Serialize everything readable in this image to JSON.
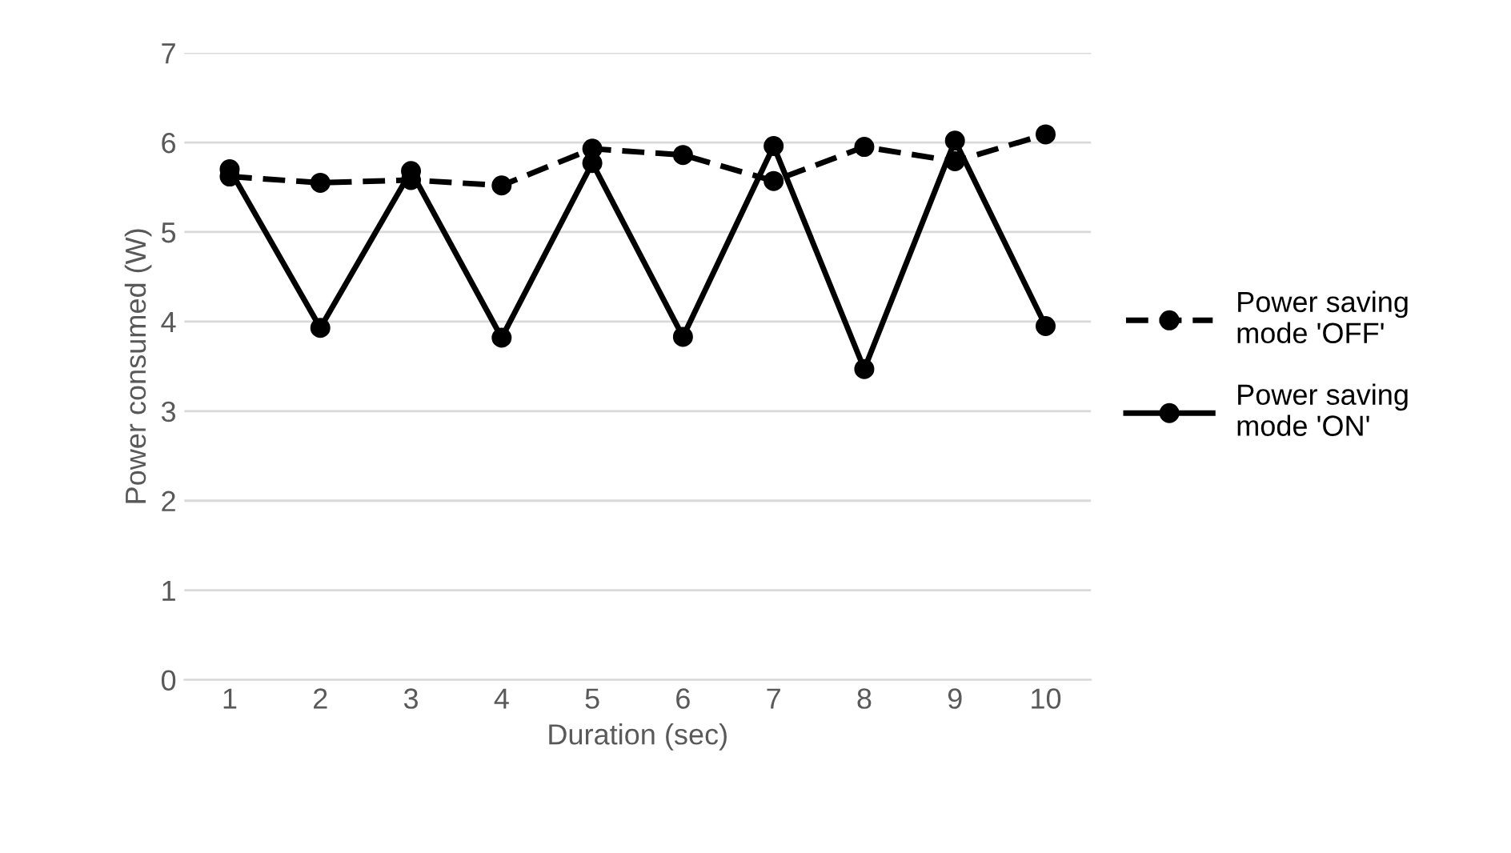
{
  "chart_data": {
    "type": "line",
    "xlabel": "Duration (sec)",
    "ylabel": "Power consumed (W)",
    "categories": [
      "1",
      "2",
      "3",
      "4",
      "5",
      "6",
      "7",
      "8",
      "9",
      "10"
    ],
    "series": [
      {
        "name": "Power saving\nmode 'OFF'",
        "color": "#000000",
        "line_style": "dashed",
        "values": [
          5.62,
          5.55,
          5.58,
          5.52,
          5.93,
          5.86,
          5.57,
          5.95,
          5.79,
          6.09
        ]
      },
      {
        "name": "Power saving\nmode 'ON'",
        "color": "#000000",
        "line_style": "solid",
        "values": [
          5.7,
          3.93,
          5.68,
          3.82,
          5.77,
          3.83,
          5.96,
          3.47,
          6.02,
          3.95
        ]
      }
    ],
    "ylim": [
      0,
      7
    ],
    "yticks": [
      0,
      1,
      2,
      3,
      4,
      5,
      6,
      7
    ],
    "grid": "y",
    "legend": "right",
    "marker": "circle"
  }
}
